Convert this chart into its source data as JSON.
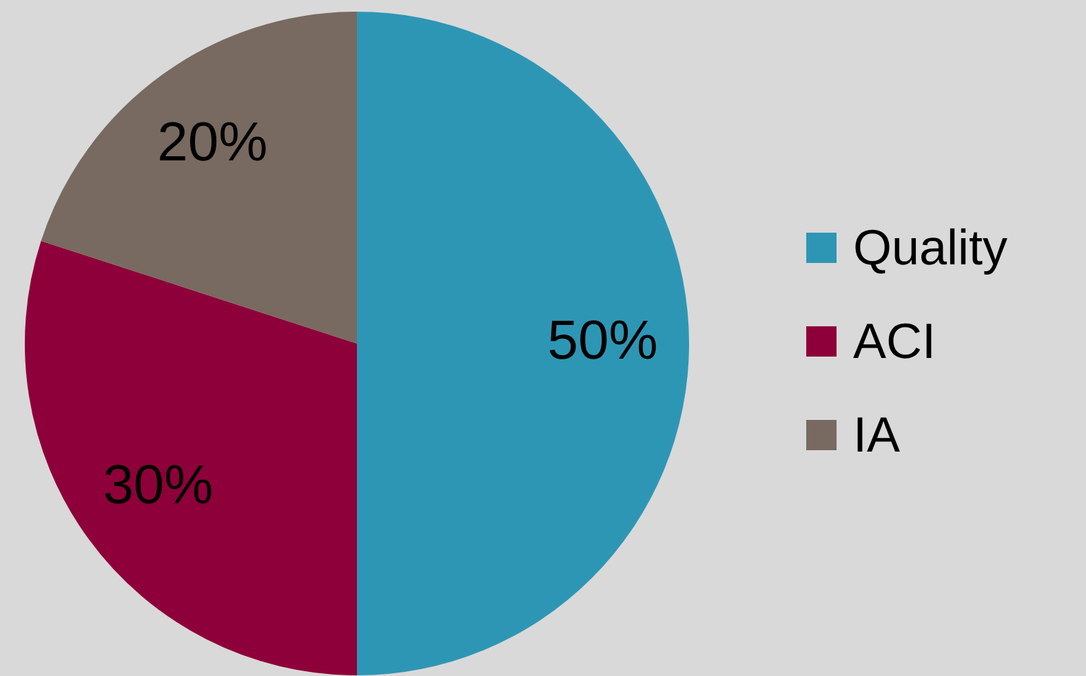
{
  "chart_data": {
    "type": "pie",
    "categories": [
      "Quality",
      "ACI",
      "IA"
    ],
    "values": [
      50,
      30,
      20
    ],
    "colors": [
      "#2e96b5",
      "#8e0039",
      "#786a60"
    ],
    "value_labels": [
      "50%",
      "30%",
      "20%"
    ],
    "legend": "right"
  }
}
